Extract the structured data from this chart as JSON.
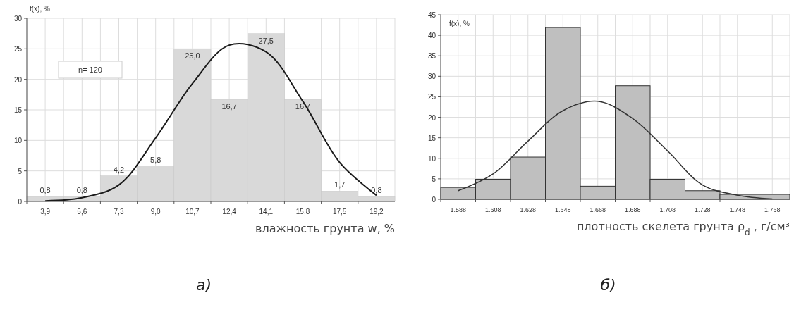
{
  "chart_data": [
    {
      "type": "bar",
      "title": "а)",
      "ylabel": "f(x), %",
      "xlabel": "влажность грунта w, %",
      "categories": [
        "3,9",
        "5,6",
        "7,3",
        "9,0",
        "10,7",
        "12,4",
        "14,1",
        "15,8",
        "17,5",
        "19,2"
      ],
      "series": [
        {
          "color": "#d9d9d9",
          "values": [
            0.8,
            0.8,
            4.2,
            5.8,
            25.0,
            16.7,
            27.5,
            16.7,
            1.7,
            0.8
          ],
          "value_labels": [
            "0,8",
            "0,8",
            "4,2",
            "5,8",
            "25,0",
            "16,7",
            "27,5",
            "16,7",
            "1,7",
            "0,8"
          ]
        },
        {
          "type": "line",
          "color": "#1a1a1a",
          "values": [
            0.1,
            0.6,
            2.7,
            10.4,
            19.3,
            25.6,
            24.5,
            16.4,
            6.4,
            1.0
          ]
        }
      ],
      "ylim": [
        0,
        30
      ],
      "yticks": [
        0,
        5,
        10,
        15,
        20,
        25,
        30
      ],
      "grid": true,
      "marker": "none",
      "line_style": "solid",
      "annotations": [
        "n= 120"
      ]
    },
    {
      "type": "bar",
      "title": "б)",
      "ylabel": "f(x), %",
      "xlabel": "плотность скелета грунта ρ$_{d}$ , г/см³",
      "categories": [
        "1.588",
        "1.608",
        "1.628",
        "1.648",
        "1.668",
        "1.688",
        "1.708",
        "1.728",
        "1.748",
        "1.768"
      ],
      "series": [
        {
          "color": "#bfbfbf",
          "values": [
            2.9,
            4.9,
            10.3,
            41.9,
            3.2,
            27.7,
            4.9,
            2.1,
            1.2,
            1.2
          ]
        },
        {
          "type": "line",
          "color": "#333333",
          "values": [
            2.1,
            6.2,
            14.2,
            21.6,
            23.9,
            19.7,
            11.8,
            3.5,
            1.0,
            0.1
          ]
        }
      ],
      "ylim": [
        0,
        45
      ],
      "yticks": [
        0,
        5,
        10,
        15,
        20,
        25,
        30,
        35,
        40,
        45
      ],
      "grid": true,
      "marker": "none",
      "line_style": "solid"
    }
  ]
}
